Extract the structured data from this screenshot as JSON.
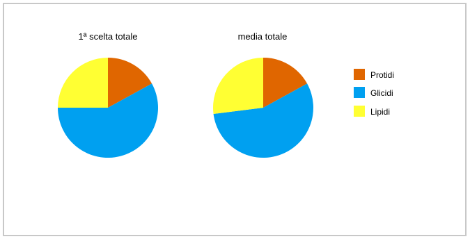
{
  "chart_data": [
    {
      "type": "pie",
      "title": "1ª scelta totale",
      "categories": [
        "Protidi",
        "Glicidi",
        "Lipidi"
      ],
      "values": [
        17,
        58,
        25
      ],
      "colors": [
        "#E06600",
        "#00A0F0",
        "#FFFF33"
      ]
    },
    {
      "type": "pie",
      "title": "media totale",
      "categories": [
        "Protidi",
        "Glicidi",
        "Lipidi"
      ],
      "values": [
        17,
        56,
        27
      ],
      "colors": [
        "#E06600",
        "#00A0F0",
        "#FFFF33"
      ]
    }
  ],
  "legend": {
    "placement": "right",
    "items": [
      {
        "label": "Protidi",
        "color": "#E06600"
      },
      {
        "label": "Glicidi",
        "color": "#00A0F0"
      },
      {
        "label": "Lipidi",
        "color": "#FFFF33"
      }
    ]
  }
}
